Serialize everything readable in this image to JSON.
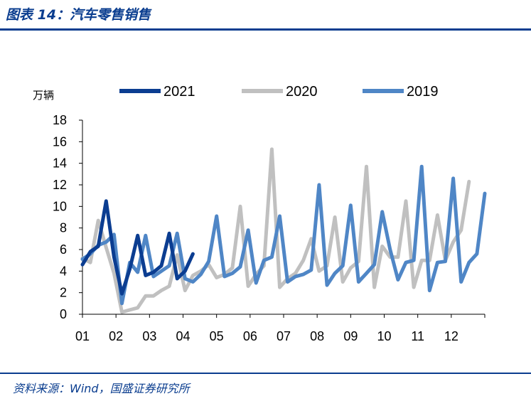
{
  "header": {
    "title": "图表 14：汽车零售销售"
  },
  "footer": {
    "source": "资料来源：Wind，国盛证券研究所"
  },
  "chart_data": {
    "type": "line",
    "title": "图表 14：汽车零售销售",
    "ylabel": "万辆",
    "xlabel": "",
    "ylim": [
      0,
      18
    ],
    "yticks": [
      0,
      2,
      4,
      6,
      8,
      10,
      12,
      14,
      16,
      18
    ],
    "x_ticks": [
      "01",
      "02",
      "03",
      "04",
      "05",
      "06",
      "07",
      "08",
      "09",
      "10",
      "11",
      "12"
    ],
    "legend_position": "top",
    "grid": false,
    "series": [
      {
        "name": "2021",
        "color": "#0b3d91",
        "values": [
          4.6,
          5.8,
          6.3,
          10.5,
          5.3,
          1.9,
          4.2,
          7.3,
          3.6,
          3.9,
          4.5,
          7.5,
          3.3,
          4.0,
          5.6
        ]
      },
      {
        "name": "2020",
        "color": "#c0c0c0",
        "values": [
          5.2,
          4.8,
          8.7,
          6.2,
          3.8,
          0.2,
          0.4,
          0.6,
          1.7,
          1.7,
          2.2,
          2.6,
          5.5,
          2.2,
          3.6,
          4.0,
          4.6,
          3.4,
          3.7,
          4.3,
          10.0,
          2.6,
          3.7,
          4.5,
          15.3,
          2.5,
          3.3,
          3.8,
          5.0,
          7.0,
          4.0,
          4.5,
          9.0,
          3.0,
          4.3,
          4.9,
          13.7,
          2.5,
          6.3,
          5.3,
          5.3,
          10.5,
          2.5,
          5.0,
          5.0,
          9.2,
          5.0,
          6.7,
          7.8,
          12.3
        ]
      },
      {
        "name": "2019",
        "color": "#4f86c6",
        "values": [
          5.1,
          5.6,
          6.4,
          6.7,
          7.4,
          1.0,
          4.8,
          3.9,
          7.3,
          3.5,
          4.0,
          4.5,
          7.5,
          3.3,
          3.0,
          3.7,
          4.9,
          9.1,
          3.5,
          3.8,
          4.4,
          7.8,
          2.9,
          5.0,
          5.3,
          9.1,
          3.0,
          3.5,
          3.7,
          4.1,
          12.0,
          2.7,
          3.8,
          4.5,
          10.1,
          3.0,
          3.8,
          4.6,
          9.5,
          6.0,
          3.2,
          4.8,
          5.0,
          13.7,
          2.2,
          4.8,
          4.9,
          12.6,
          3.0,
          4.8,
          5.6,
          11.2
        ]
      }
    ]
  }
}
